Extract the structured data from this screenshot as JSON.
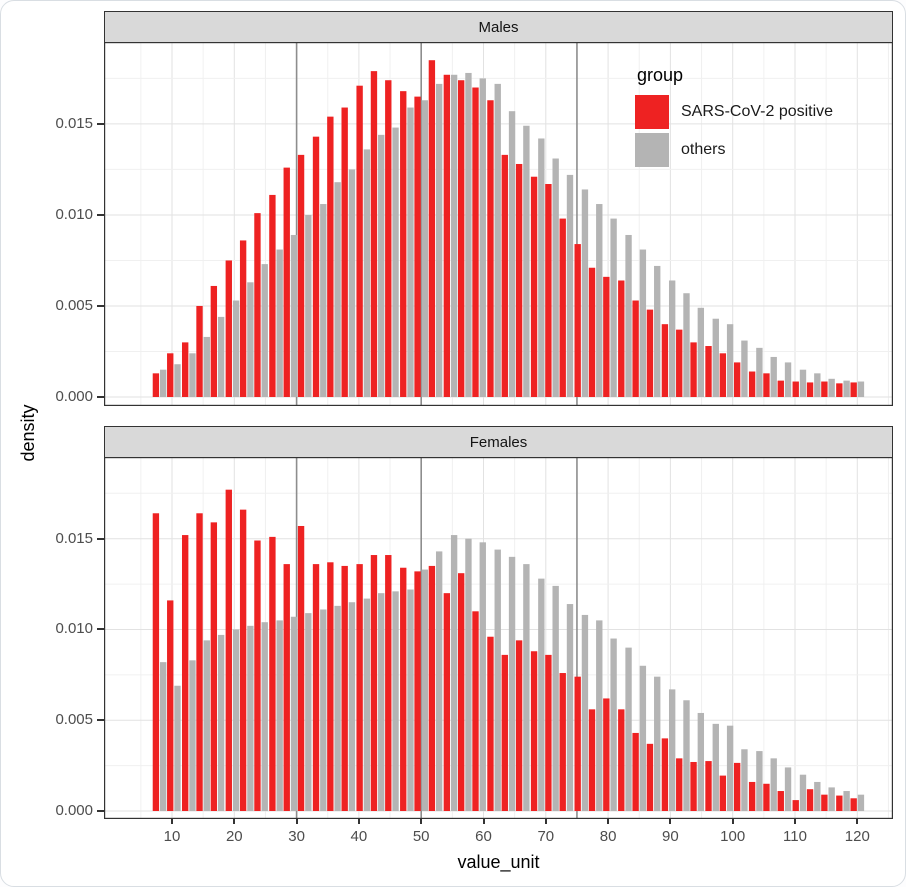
{
  "figure": {
    "legend": {
      "title": "group",
      "position": "inside-top-right-of-males-panel",
      "items": [
        {
          "label": "SARS-CoV-2 positive",
          "color": "#EE2222"
        },
        {
          "label": "others",
          "color": "#B4B4B4"
        }
      ]
    },
    "reference_lines_x": [
      30,
      50,
      75
    ],
    "colors": {
      "positive": "#EE2222",
      "others": "#B4B4B4",
      "strip_bg": "#d9d9d9",
      "panel_border": "#333333",
      "grid_major": "#e2e2e2",
      "grid_minor": "#f0f0f0",
      "ref_line": "#8d8d8d",
      "tick_text": "#4d4d4d",
      "tick_mark": "#333333"
    }
  },
  "chart_data": {
    "type": "bar",
    "subtype": "dodged-density-histogram",
    "title": "",
    "xlabel": "value_unit",
    "ylabel": "density",
    "xlim": [
      3,
      127
    ],
    "ylim": [
      0,
      0.0195
    ],
    "bin_width": 2.333,
    "grid": "on",
    "legend_position": "inside top-right of first facet",
    "x_ticks": [
      10,
      20,
      30,
      40,
      50,
      60,
      70,
      80,
      90,
      100,
      110,
      120
    ],
    "y_ticks": [
      0,
      0.005,
      0.01,
      0.015
    ],
    "y_tick_labels": [
      "0.000",
      "0.005",
      "0.010",
      "0.015"
    ],
    "x": [
      8.0,
      10.3,
      12.7,
      15.0,
      17.3,
      19.7,
      22.0,
      24.3,
      26.7,
      29.0,
      31.3,
      33.7,
      36.0,
      38.3,
      40.7,
      43.0,
      45.3,
      47.7,
      50.0,
      52.3,
      54.7,
      57.0,
      59.3,
      61.7,
      64.0,
      66.3,
      68.7,
      71.0,
      73.3,
      75.7,
      78.0,
      80.3,
      82.7,
      85.0,
      87.3,
      89.7,
      92.0,
      94.3,
      96.7,
      99.0,
      101.3,
      103.7,
      106.0,
      108.3,
      110.7,
      113.0,
      115.3,
      117.7,
      120.0
    ],
    "facets": [
      {
        "label": "Males",
        "series": [
          {
            "name": "SARS-CoV-2 positive",
            "values": [
              0.0013,
              0.0024,
              0.003,
              0.005,
              0.0061,
              0.0075,
              0.0086,
              0.0101,
              0.0111,
              0.0126,
              0.0133,
              0.0143,
              0.0154,
              0.0159,
              0.0171,
              0.0179,
              0.0174,
              0.0168,
              0.0165,
              0.0185,
              0.0177,
              0.0174,
              0.017,
              0.0163,
              0.0133,
              0.0128,
              0.0121,
              0.0117,
              0.0098,
              0.0084,
              0.0071,
              0.0066,
              0.0064,
              0.0053,
              0.0048,
              0.004,
              0.0037,
              0.003,
              0.0028,
              0.0024,
              0.0019,
              0.0014,
              0.0013,
              0.0009,
              0.00085,
              0.0008,
              0.00085,
              0.00075,
              0.0008
            ]
          },
          {
            "name": "others",
            "values": [
              0.0015,
              0.0018,
              0.0024,
              0.0033,
              0.0044,
              0.0053,
              0.0063,
              0.0073,
              0.0081,
              0.0089,
              0.01,
              0.0106,
              0.0118,
              0.0125,
              0.0136,
              0.0144,
              0.0148,
              0.0159,
              0.0163,
              0.0172,
              0.0177,
              0.0178,
              0.0175,
              0.0172,
              0.0157,
              0.0149,
              0.0142,
              0.0131,
              0.0122,
              0.0114,
              0.0106,
              0.0098,
              0.0089,
              0.0081,
              0.0072,
              0.0064,
              0.0057,
              0.0049,
              0.0043,
              0.004,
              0.0031,
              0.0027,
              0.0022,
              0.0019,
              0.0015,
              0.0013,
              0.001,
              0.0009,
              0.00085
            ]
          }
        ]
      },
      {
        "label": "Females",
        "series": [
          {
            "name": "SARS-CoV-2 positive",
            "values": [
              0.0164,
              0.0116,
              0.0152,
              0.0164,
              0.0159,
              0.0177,
              0.0166,
              0.0149,
              0.0151,
              0.0136,
              0.0157,
              0.0136,
              0.0137,
              0.0135,
              0.0136,
              0.0141,
              0.0141,
              0.0134,
              0.0132,
              0.0135,
              0.012,
              0.0131,
              0.011,
              0.0096,
              0.0086,
              0.0094,
              0.0088,
              0.0086,
              0.0076,
              0.0074,
              0.0056,
              0.0062,
              0.0056,
              0.0043,
              0.0037,
              0.004,
              0.0029,
              0.0027,
              0.00275,
              0.00195,
              0.00265,
              0.0016,
              0.0015,
              0.0011,
              0.0006,
              0.0012,
              0.0009,
              0.00085,
              0.0007
            ]
          },
          {
            "name": "others",
            "values": [
              0.0082,
              0.0069,
              0.0083,
              0.0094,
              0.0097,
              0.01,
              0.0102,
              0.0104,
              0.0105,
              0.0107,
              0.0109,
              0.0111,
              0.0113,
              0.0115,
              0.0117,
              0.012,
              0.0121,
              0.0122,
              0.0133,
              0.0143,
              0.0152,
              0.015,
              0.0148,
              0.0144,
              0.014,
              0.0136,
              0.0128,
              0.0124,
              0.0114,
              0.0108,
              0.0105,
              0.0095,
              0.009,
              0.008,
              0.0074,
              0.0067,
              0.0061,
              0.0054,
              0.0048,
              0.0047,
              0.0034,
              0.0033,
              0.0029,
              0.0024,
              0.002,
              0.0016,
              0.0013,
              0.0011,
              0.0009
            ]
          }
        ]
      }
    ]
  }
}
